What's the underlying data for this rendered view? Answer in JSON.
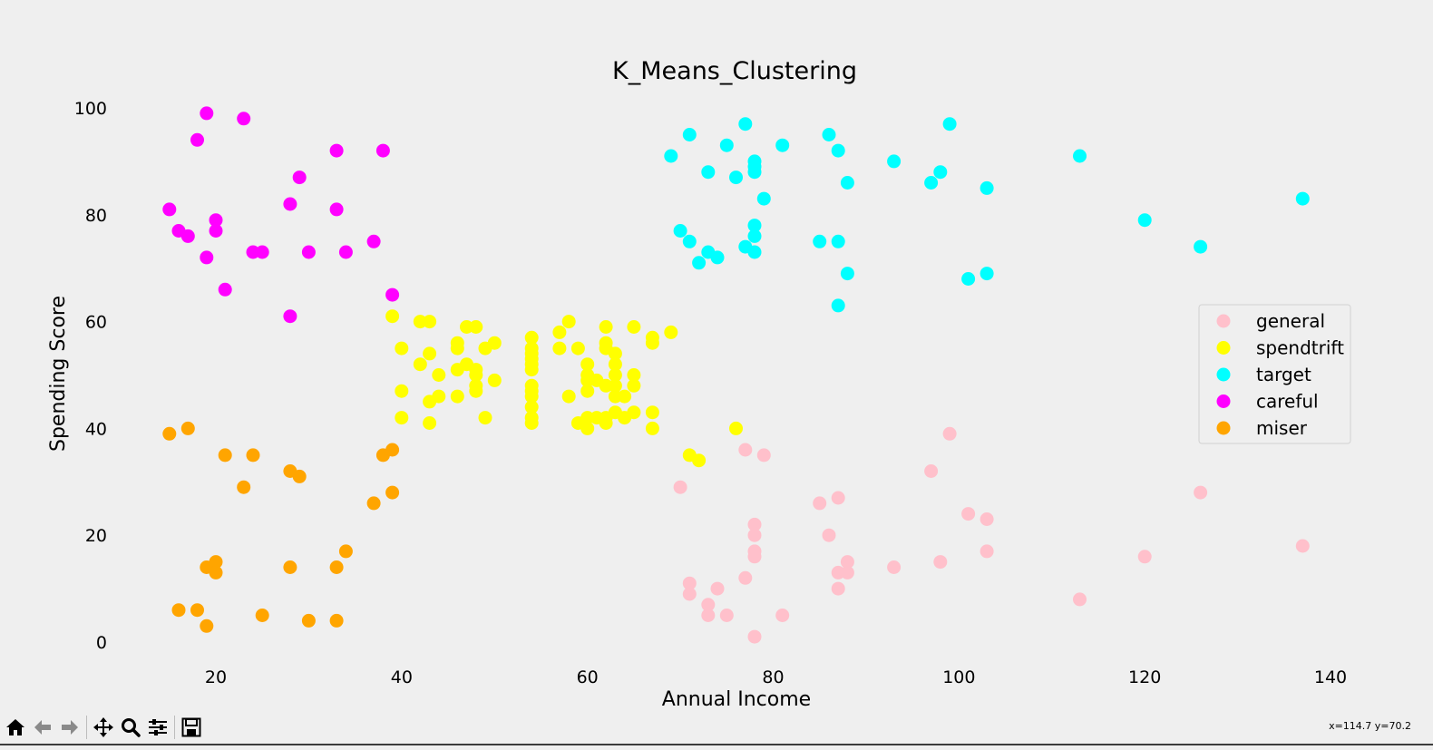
{
  "chart_data": {
    "type": "scatter",
    "title": "K_Means_Clustering",
    "xlabel": "Annual Income",
    "ylabel": "Spending Score",
    "xlim": [
      11,
      146
    ],
    "ylim": [
      -4,
      104
    ],
    "xticks": [
      20,
      40,
      60,
      80,
      100,
      120,
      140
    ],
    "yticks": [
      0,
      20,
      40,
      60,
      80,
      100
    ],
    "grid": false,
    "legend_position": "center-right",
    "series": [
      {
        "name": "general",
        "color": "#ffc0cb",
        "points": [
          [
            70,
            29
          ],
          [
            71,
            11
          ],
          [
            71,
            9
          ],
          [
            73,
            7
          ],
          [
            73,
            5
          ],
          [
            74,
            10
          ],
          [
            75,
            5
          ],
          [
            77,
            36
          ],
          [
            77,
            12
          ],
          [
            78,
            1
          ],
          [
            78,
            22
          ],
          [
            78,
            20
          ],
          [
            78,
            17
          ],
          [
            78,
            16
          ],
          [
            79,
            35
          ],
          [
            81,
            5
          ],
          [
            85,
            26
          ],
          [
            86,
            20
          ],
          [
            87,
            27
          ],
          [
            87,
            13
          ],
          [
            87,
            10
          ],
          [
            88,
            15
          ],
          [
            88,
            13
          ],
          [
            93,
            14
          ],
          [
            97,
            32
          ],
          [
            98,
            15
          ],
          [
            99,
            39
          ],
          [
            101,
            24
          ],
          [
            103,
            23
          ],
          [
            103,
            17
          ],
          [
            113,
            8
          ],
          [
            120,
            16
          ],
          [
            126,
            28
          ],
          [
            137,
            18
          ]
        ]
      },
      {
        "name": "spendtrift",
        "color": "#ffff00",
        "points": [
          [
            39,
            61
          ],
          [
            40,
            55
          ],
          [
            40,
            47
          ],
          [
            40,
            42
          ],
          [
            42,
            52
          ],
          [
            42,
            60
          ],
          [
            43,
            60
          ],
          [
            43,
            54
          ],
          [
            43,
            45
          ],
          [
            43,
            41
          ],
          [
            44,
            50
          ],
          [
            44,
            46
          ],
          [
            46,
            51
          ],
          [
            46,
            46
          ],
          [
            46,
            56
          ],
          [
            46,
            55
          ],
          [
            47,
            52
          ],
          [
            47,
            59
          ],
          [
            48,
            51
          ],
          [
            48,
            59
          ],
          [
            48,
            50
          ],
          [
            48,
            48
          ],
          [
            48,
            47
          ],
          [
            49,
            55
          ],
          [
            49,
            42
          ],
          [
            50,
            49
          ],
          [
            50,
            56
          ],
          [
            54,
            47
          ],
          [
            54,
            54
          ],
          [
            54,
            53
          ],
          [
            54,
            48
          ],
          [
            54,
            52
          ],
          [
            54,
            42
          ],
          [
            54,
            51
          ],
          [
            54,
            55
          ],
          [
            54,
            41
          ],
          [
            54,
            44
          ],
          [
            54,
            57
          ],
          [
            54,
            46
          ],
          [
            57,
            58
          ],
          [
            57,
            55
          ],
          [
            58,
            60
          ],
          [
            58,
            46
          ],
          [
            59,
            55
          ],
          [
            59,
            41
          ],
          [
            60,
            49
          ],
          [
            60,
            40
          ],
          [
            60,
            42
          ],
          [
            60,
            52
          ],
          [
            60,
            47
          ],
          [
            60,
            50
          ],
          [
            61,
            42
          ],
          [
            61,
            49
          ],
          [
            62,
            41
          ],
          [
            62,
            48
          ],
          [
            62,
            59
          ],
          [
            62,
            55
          ],
          [
            62,
            56
          ],
          [
            62,
            42
          ],
          [
            63,
            50
          ],
          [
            63,
            46
          ],
          [
            63,
            43
          ],
          [
            63,
            48
          ],
          [
            63,
            52
          ],
          [
            63,
            54
          ],
          [
            64,
            42
          ],
          [
            64,
            46
          ],
          [
            65,
            48
          ],
          [
            65,
            50
          ],
          [
            65,
            43
          ],
          [
            65,
            59
          ],
          [
            67,
            43
          ],
          [
            67,
            57
          ],
          [
            67,
            56
          ],
          [
            67,
            40
          ],
          [
            69,
            58
          ],
          [
            76,
            40
          ],
          [
            71,
            35
          ],
          [
            72,
            34
          ]
        ]
      },
      {
        "name": "target",
        "color": "#00ffff",
        "points": [
          [
            69,
            91
          ],
          [
            70,
            77
          ],
          [
            71,
            95
          ],
          [
            71,
            75
          ],
          [
            72,
            71
          ],
          [
            73,
            88
          ],
          [
            73,
            73
          ],
          [
            74,
            72
          ],
          [
            75,
            93
          ],
          [
            76,
            87
          ],
          [
            77,
            97
          ],
          [
            77,
            74
          ],
          [
            78,
            90
          ],
          [
            78,
            88
          ],
          [
            78,
            76
          ],
          [
            78,
            89
          ],
          [
            78,
            78
          ],
          [
            78,
            73
          ],
          [
            79,
            83
          ],
          [
            81,
            93
          ],
          [
            85,
            75
          ],
          [
            86,
            95
          ],
          [
            87,
            63
          ],
          [
            87,
            75
          ],
          [
            87,
            92
          ],
          [
            88,
            86
          ],
          [
            88,
            69
          ],
          [
            93,
            90
          ],
          [
            97,
            86
          ],
          [
            98,
            88
          ],
          [
            99,
            97
          ],
          [
            101,
            68
          ],
          [
            103,
            85
          ],
          [
            103,
            69
          ],
          [
            113,
            91
          ],
          [
            120,
            79
          ],
          [
            126,
            74
          ],
          [
            137,
            83
          ]
        ]
      },
      {
        "name": "careful",
        "color": "#ff00ff",
        "points": [
          [
            15,
            81
          ],
          [
            16,
            77
          ],
          [
            17,
            76
          ],
          [
            18,
            94
          ],
          [
            19,
            72
          ],
          [
            19,
            99
          ],
          [
            20,
            77
          ],
          [
            20,
            79
          ],
          [
            21,
            66
          ],
          [
            23,
            98
          ],
          [
            24,
            73
          ],
          [
            25,
            73
          ],
          [
            28,
            82
          ],
          [
            28,
            61
          ],
          [
            29,
            87
          ],
          [
            30,
            73
          ],
          [
            33,
            92
          ],
          [
            33,
            81
          ],
          [
            34,
            73
          ],
          [
            37,
            75
          ],
          [
            38,
            92
          ],
          [
            39,
            65
          ]
        ]
      },
      {
        "name": "miser",
        "color": "#ffa500",
        "points": [
          [
            15,
            39
          ],
          [
            16,
            6
          ],
          [
            17,
            40
          ],
          [
            18,
            6
          ],
          [
            19,
            3
          ],
          [
            19,
            14
          ],
          [
            20,
            15
          ],
          [
            20,
            13
          ],
          [
            21,
            35
          ],
          [
            23,
            29
          ],
          [
            24,
            35
          ],
          [
            25,
            5
          ],
          [
            28,
            14
          ],
          [
            28,
            32
          ],
          [
            29,
            31
          ],
          [
            30,
            4
          ],
          [
            33,
            4
          ],
          [
            33,
            14
          ],
          [
            34,
            17
          ],
          [
            37,
            26
          ],
          [
            38,
            35
          ],
          [
            39,
            36
          ],
          [
            39,
            28
          ]
        ]
      }
    ]
  },
  "status": {
    "coords": "x=114.7 y=70.2"
  },
  "toolbar": {
    "buttons": [
      "home-icon",
      "back-icon",
      "forward-icon",
      "pan-icon",
      "zoom-icon",
      "configure-subplots-icon",
      "save-icon"
    ]
  }
}
